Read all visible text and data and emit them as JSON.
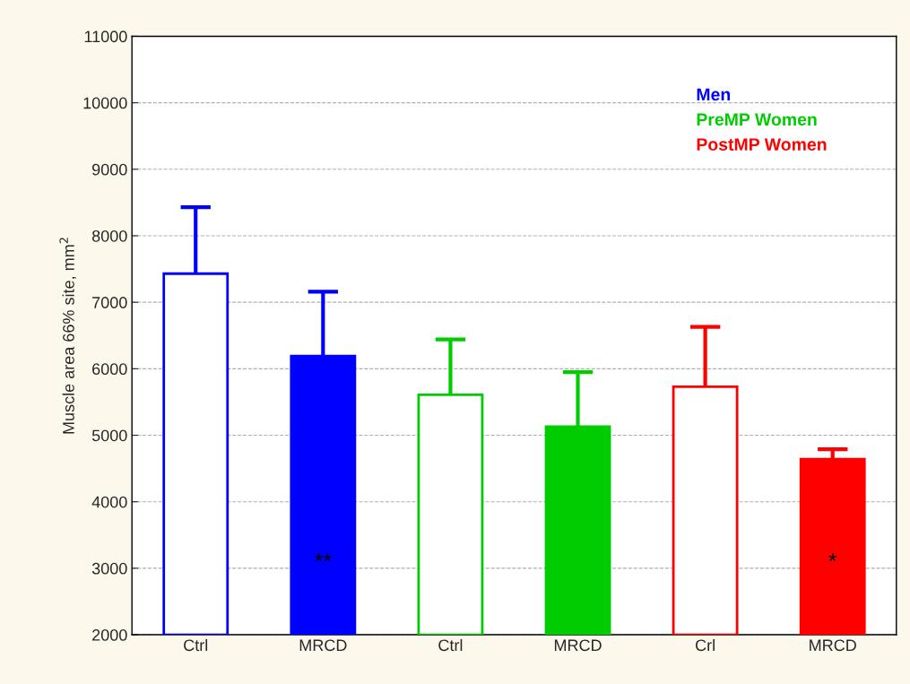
{
  "chart_data": {
    "type": "bar",
    "ylabel": "Muscle area 66% site, mm$^{2}$",
    "categories": [
      "Ctrl",
      "MRCD",
      "Ctrl",
      "MRCD",
      "Crl",
      "MRCD"
    ],
    "series": [
      {
        "name": "Men",
        "color": "#0000ff",
        "colors": [
          "#ffffff",
          "#0000ff",
          null,
          null,
          null,
          null
        ],
        "values": [
          7430,
          6190,
          null,
          null,
          null,
          null
        ],
        "errors": [
          1000,
          970,
          null,
          null,
          null,
          null
        ],
        "value_labels": [
          null,
          "**",
          null,
          null,
          null,
          null
        ]
      },
      {
        "name": "PreMP Women",
        "color": "#00cc00",
        "colors": [
          null,
          null,
          "#ffffff",
          "#00cc00",
          null,
          null
        ],
        "values": [
          null,
          null,
          5610,
          5130,
          null,
          null
        ],
        "errors": [
          null,
          null,
          830,
          820,
          null,
          null
        ]
      },
      {
        "name": "PostMP Women",
        "color": "#ff0000",
        "colors": [
          null,
          null,
          null,
          null,
          "#ffffff",
          "#ff0000"
        ],
        "values": [
          null,
          null,
          null,
          null,
          5730,
          4640
        ],
        "errors": [
          null,
          null,
          null,
          null,
          900,
          150
        ],
        "value_labels": [
          null,
          null,
          null,
          null,
          null,
          "*"
        ]
      }
    ],
    "ylim": [
      2000,
      11000
    ],
    "yticks": [
      2000,
      3000,
      4000,
      5000,
      6000,
      7000,
      8000,
      9000,
      10000,
      11000
    ],
    "grid": "y",
    "legend": "top right"
  }
}
